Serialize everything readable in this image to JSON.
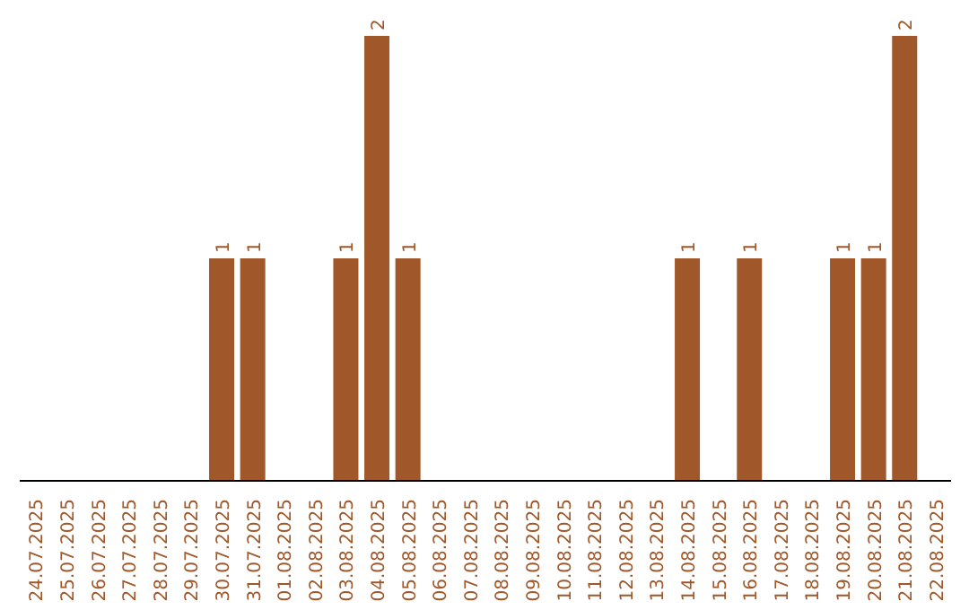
{
  "chart_data": {
    "type": "bar",
    "categories": [
      "24.07.2025",
      "25.07.2025",
      "26.07.2025",
      "27.07.2025",
      "28.07.2025",
      "29.07.2025",
      "30.07.2025",
      "31.07.2025",
      "01.08.2025",
      "02.08.2025",
      "03.08.2025",
      "04.08.2025",
      "05.08.2025",
      "06.08.2025",
      "07.08.2025",
      "08.08.2025",
      "09.08.2025",
      "10.08.2025",
      "11.08.2025",
      "12.08.2025",
      "13.08.2025",
      "14.08.2025",
      "15.08.2025",
      "16.08.2025",
      "17.08.2025",
      "18.08.2025",
      "19.08.2025",
      "20.08.2025",
      "21.08.2025",
      "22.08.2025"
    ],
    "values": [
      0,
      0,
      0,
      0,
      0,
      0,
      1,
      1,
      0,
      0,
      1,
      2,
      1,
      0,
      0,
      0,
      0,
      0,
      0,
      0,
      0,
      1,
      0,
      1,
      0,
      0,
      1,
      1,
      2,
      0
    ],
    "value_labels": [
      null,
      null,
      null,
      null,
      null,
      null,
      "1",
      "1",
      null,
      null,
      "1",
      "2",
      "1",
      null,
      null,
      null,
      null,
      null,
      null,
      null,
      null,
      "1",
      null,
      "1",
      null,
      null,
      "1",
      "1",
      "2",
      null
    ],
    "color": "#a0582a",
    "grid": false,
    "legend": false
  }
}
